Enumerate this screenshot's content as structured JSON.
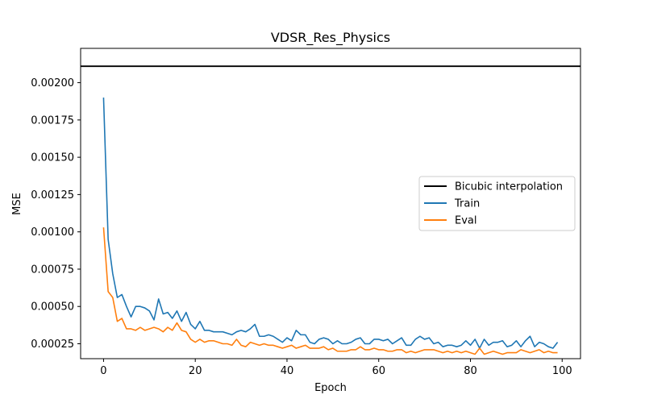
{
  "chart_data": {
    "type": "line",
    "title": "VDSR_Res_Physics",
    "xlabel": "Epoch",
    "ylabel": "MSE",
    "xlim": [
      -5,
      104
    ],
    "ylim": [
      0.00015,
      0.00223
    ],
    "xticks": [
      0,
      20,
      40,
      60,
      80,
      100
    ],
    "xtick_labels": [
      "0",
      "20",
      "40",
      "60",
      "80",
      "100"
    ],
    "yticks": [
      0.00025,
      0.0005,
      0.00075,
      0.001,
      0.00125,
      0.0015,
      0.00175,
      0.002
    ],
    "ytick_labels": [
      "0.00025",
      "0.00050",
      "0.00075",
      "0.00100",
      "0.00125",
      "0.00150",
      "0.00175",
      "0.00200"
    ],
    "grid": false,
    "legend_position": "center-right",
    "hline": {
      "name": "Bicubic interpolation",
      "value": 0.00211,
      "color": "#000000"
    },
    "series": [
      {
        "name": "Train",
        "color": "#1f77b4",
        "x": [
          0,
          1,
          2,
          3,
          4,
          5,
          6,
          7,
          8,
          9,
          10,
          11,
          12,
          13,
          14,
          15,
          16,
          17,
          18,
          19,
          20,
          21,
          22,
          23,
          24,
          25,
          26,
          27,
          28,
          29,
          30,
          31,
          32,
          33,
          34,
          35,
          36,
          37,
          38,
          39,
          40,
          41,
          42,
          43,
          44,
          45,
          46,
          47,
          48,
          49,
          50,
          51,
          52,
          53,
          54,
          55,
          56,
          57,
          58,
          59,
          60,
          61,
          62,
          63,
          64,
          65,
          66,
          67,
          68,
          69,
          70,
          71,
          72,
          73,
          74,
          75,
          76,
          77,
          78,
          79,
          80,
          81,
          82,
          83,
          84,
          85,
          86,
          87,
          88,
          89,
          90,
          91,
          92,
          93,
          94,
          95,
          96,
          97,
          98,
          99
        ],
        "values": [
          0.0019,
          0.00095,
          0.00072,
          0.00056,
          0.00058,
          0.0005,
          0.00043,
          0.0005,
          0.0005,
          0.00049,
          0.00047,
          0.00041,
          0.00055,
          0.00045,
          0.00046,
          0.00042,
          0.00047,
          0.0004,
          0.00046,
          0.00038,
          0.00035,
          0.0004,
          0.00034,
          0.00034,
          0.00033,
          0.00033,
          0.00033,
          0.00032,
          0.00031,
          0.00033,
          0.00034,
          0.00033,
          0.00035,
          0.00038,
          0.0003,
          0.0003,
          0.00031,
          0.0003,
          0.00028,
          0.00026,
          0.00029,
          0.00027,
          0.00034,
          0.00031,
          0.00031,
          0.00026,
          0.00025,
          0.00028,
          0.00029,
          0.00028,
          0.00025,
          0.00027,
          0.00025,
          0.00025,
          0.00026,
          0.00028,
          0.00029,
          0.00025,
          0.00025,
          0.00028,
          0.00028,
          0.00027,
          0.00028,
          0.00025,
          0.00027,
          0.00029,
          0.00024,
          0.00024,
          0.00028,
          0.0003,
          0.00028,
          0.00029,
          0.00025,
          0.00026,
          0.00023,
          0.00024,
          0.00024,
          0.00023,
          0.00024,
          0.00027,
          0.00024,
          0.00028,
          0.00022,
          0.00028,
          0.00024,
          0.00026,
          0.00026,
          0.00027,
          0.00023,
          0.00024,
          0.00027,
          0.00023,
          0.00027,
          0.0003,
          0.00023,
          0.00026,
          0.00025,
          0.00023,
          0.00022,
          0.00026
        ]
      },
      {
        "name": "Eval",
        "color": "#ff7f0e",
        "x": [
          0,
          1,
          2,
          3,
          4,
          5,
          6,
          7,
          8,
          9,
          10,
          11,
          12,
          13,
          14,
          15,
          16,
          17,
          18,
          19,
          20,
          21,
          22,
          23,
          24,
          25,
          26,
          27,
          28,
          29,
          30,
          31,
          32,
          33,
          34,
          35,
          36,
          37,
          38,
          39,
          40,
          41,
          42,
          43,
          44,
          45,
          46,
          47,
          48,
          49,
          50,
          51,
          52,
          53,
          54,
          55,
          56,
          57,
          58,
          59,
          60,
          61,
          62,
          63,
          64,
          65,
          66,
          67,
          68,
          69,
          70,
          71,
          72,
          73,
          74,
          75,
          76,
          77,
          78,
          79,
          80,
          81,
          82,
          83,
          84,
          85,
          86,
          87,
          88,
          89,
          90,
          91,
          92,
          93,
          94,
          95,
          96,
          97,
          98,
          99
        ],
        "values": [
          0.00103,
          0.0006,
          0.00056,
          0.0004,
          0.00042,
          0.00035,
          0.00035,
          0.00034,
          0.00036,
          0.00034,
          0.00035,
          0.00036,
          0.00035,
          0.00033,
          0.00036,
          0.00034,
          0.00039,
          0.00034,
          0.00033,
          0.00028,
          0.00026,
          0.00028,
          0.00026,
          0.00027,
          0.00027,
          0.00026,
          0.00025,
          0.00025,
          0.00024,
          0.00028,
          0.00024,
          0.00023,
          0.00026,
          0.00025,
          0.00024,
          0.00025,
          0.00024,
          0.00024,
          0.00023,
          0.00022,
          0.00023,
          0.00024,
          0.00022,
          0.00023,
          0.00024,
          0.00022,
          0.00022,
          0.00022,
          0.00023,
          0.00021,
          0.00022,
          0.0002,
          0.0002,
          0.0002,
          0.00021,
          0.00021,
          0.00023,
          0.00021,
          0.00021,
          0.00022,
          0.00021,
          0.00021,
          0.0002,
          0.0002,
          0.00021,
          0.00021,
          0.00019,
          0.0002,
          0.00019,
          0.0002,
          0.00021,
          0.00021,
          0.00021,
          0.0002,
          0.00019,
          0.0002,
          0.00019,
          0.0002,
          0.00019,
          0.0002,
          0.00019,
          0.00018,
          0.00022,
          0.00018,
          0.00019,
          0.0002,
          0.00019,
          0.00018,
          0.00019,
          0.00019,
          0.00019,
          0.00021,
          0.0002,
          0.00019,
          0.0002,
          0.00021,
          0.00019,
          0.0002,
          0.00019,
          0.00019
        ]
      }
    ]
  }
}
